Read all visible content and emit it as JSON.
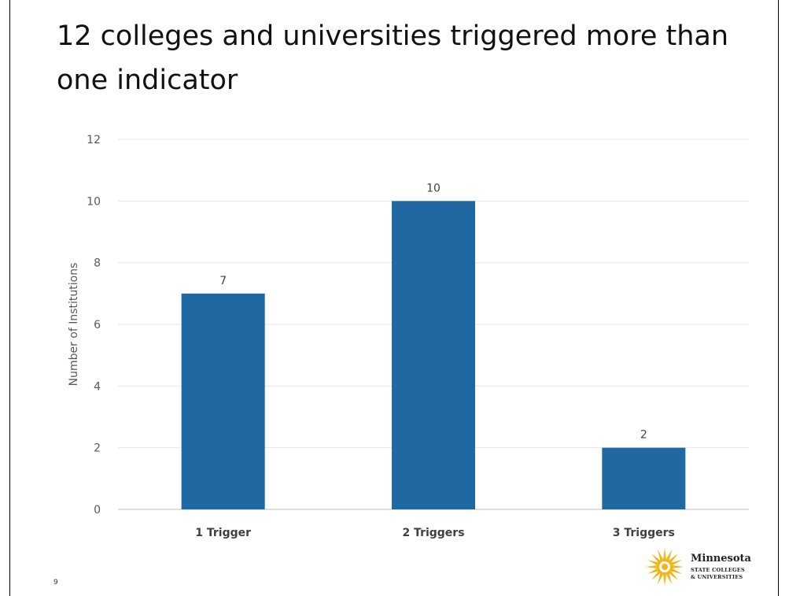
{
  "slide": {
    "title": "12 colleges and universities triggered more than one indicator",
    "page_number": "9"
  },
  "logo": {
    "name": "Minnesota",
    "line1": "STATE COLLEGES",
    "line2": "& UNIVERSITIES",
    "color": "#F2B61C"
  },
  "chart_data": {
    "type": "bar",
    "categories": [
      "1 Trigger",
      "2 Triggers",
      "3 Triggers"
    ],
    "values": [
      7,
      10,
      2
    ],
    "data_labels": [
      "7",
      "10",
      "2"
    ],
    "ylabel": "Number of Institutions",
    "xlabel": "",
    "ylim": [
      0,
      12
    ],
    "yticks": [
      "0",
      "2",
      "4",
      "6",
      "8",
      "10",
      "12"
    ],
    "grid": true,
    "bar_color": "#1F68A2",
    "grid_color": "#E6E6E6",
    "axis_color": "#BFBFBF"
  }
}
